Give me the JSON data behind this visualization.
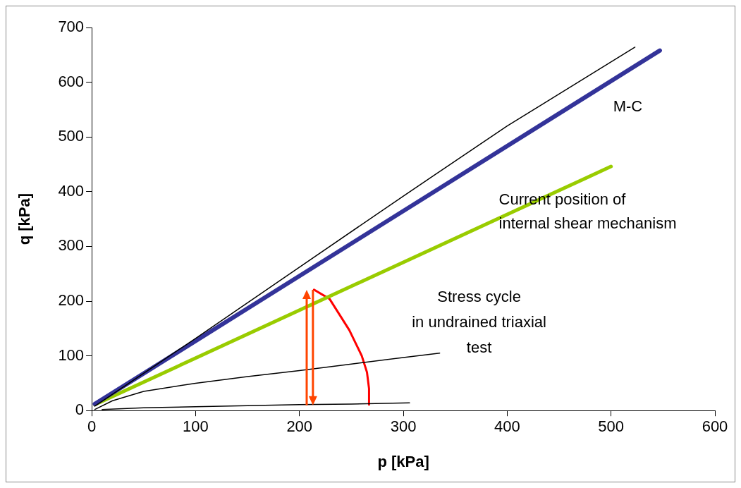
{
  "chart_data": {
    "type": "line",
    "xlabel": "p [kPa]",
    "ylabel": "q [kPa]",
    "xlim": [
      0,
      600
    ],
    "xticks": [
      0,
      100,
      200,
      300,
      400,
      500,
      600
    ],
    "ylim": [
      0,
      700
    ],
    "yticks": [
      0,
      100,
      200,
      300,
      400,
      500,
      600,
      700
    ],
    "grid": false,
    "legend": false,
    "marker": "none",
    "series": [
      {
        "color": "#000000",
        "x": [
          3,
          50,
          100,
          200,
          300,
          400,
          523
        ],
        "values": [
          8,
          68,
          132,
          262,
          392,
          520,
          664
        ]
      },
      {
        "color": "#333399",
        "x": [
          3,
          547
        ],
        "values": [
          12,
          658
        ]
      },
      {
        "color": "#99cc00",
        "x": [
          3,
          500
        ],
        "values": [
          11,
          446
        ]
      },
      {
        "color": "#000000",
        "x": [
          3,
          20,
          50,
          100,
          150,
          200,
          250,
          300,
          335
        ],
        "values": [
          2,
          18,
          35,
          50,
          62,
          73,
          85,
          97,
          105
        ]
      },
      {
        "color": "#000000",
        "x": [
          10,
          50,
          100,
          150,
          200,
          250,
          306
        ],
        "values": [
          2,
          5,
          7,
          9,
          11,
          12,
          14
        ]
      },
      {
        "color": "#ff0000",
        "x": [
          214,
          229,
          248,
          260,
          265,
          267,
          267
        ],
        "values": [
          221,
          204,
          147,
          100,
          70,
          40,
          11
        ]
      }
    ],
    "annotations": [
      "M-C",
      "Current position of\ninternal shear mechanism",
      "Stress cycle\nin undrained triaxial\ntest"
    ]
  }
}
